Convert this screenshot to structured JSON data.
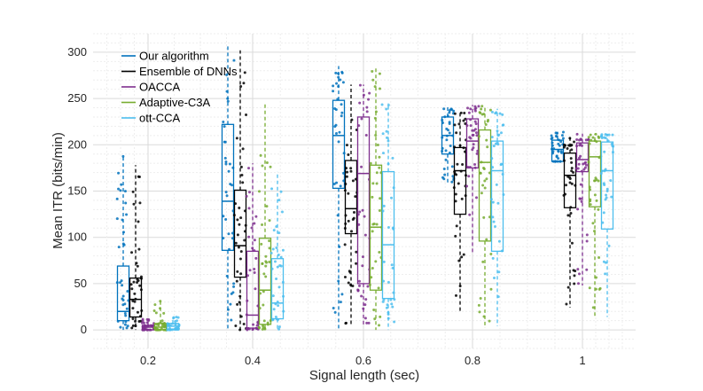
{
  "chart_data": {
    "type": "box",
    "title": "",
    "xlabel": "Signal length (sec)",
    "ylabel": "Mean ITR (bits/min)",
    "categories": [
      "0.2",
      "0.4",
      "0.6",
      "0.8",
      "1"
    ],
    "ylim": [
      -20,
      320
    ],
    "yticks": [
      0,
      50,
      100,
      150,
      200,
      250,
      300
    ],
    "grid": true,
    "legend_position": "top-left",
    "series": [
      {
        "name": "Our algorithm",
        "color": "#0072BD",
        "boxes": [
          {
            "min": 0,
            "q1": 10,
            "median": 20,
            "q3": 69,
            "max": 188
          },
          {
            "min": 0,
            "q1": 86,
            "median": 139,
            "q3": 222,
            "max": 309
          },
          {
            "min": 0,
            "q1": 153,
            "median": 210,
            "q3": 248,
            "max": 285
          },
          {
            "min": 159,
            "q1": 190,
            "median": 210,
            "q3": 230,
            "max": 241
          },
          {
            "min": 182,
            "q1": 182,
            "median": 195,
            "q3": 205,
            "max": 214
          }
        ]
      },
      {
        "name": "Ensemble of DNNs",
        "color": "#000000",
        "boxes": [
          {
            "min": 0,
            "q1": 14,
            "median": 33,
            "q3": 56,
            "max": 178
          },
          {
            "min": 0,
            "q1": 57,
            "median": 91,
            "q3": 151,
            "max": 302
          },
          {
            "min": 6,
            "q1": 104,
            "median": 131,
            "q3": 183,
            "max": 265
          },
          {
            "min": 18,
            "q1": 125,
            "median": 172,
            "q3": 197,
            "max": 236
          },
          {
            "min": 24,
            "q1": 132,
            "median": 167,
            "q3": 191,
            "max": 210
          }
        ]
      },
      {
        "name": "OACCA",
        "color": "#7E2F8E",
        "boxes": [
          {
            "min": 0,
            "q1": 0,
            "median": 3,
            "q3": 5,
            "max": 12
          },
          {
            "min": 0,
            "q1": 2,
            "median": 16,
            "q3": 85,
            "max": 180
          },
          {
            "min": 6,
            "q1": 50,
            "median": 169,
            "q3": 230,
            "max": 265
          },
          {
            "min": 84,
            "q1": 175,
            "median": 204,
            "q3": 228,
            "max": 243
          },
          {
            "min": 48,
            "q1": 171,
            "median": 184,
            "q3": 202,
            "max": 212
          }
        ]
      },
      {
        "name": "Adaptive-C3A",
        "color": "#77AC30",
        "boxes": [
          {
            "min": 0,
            "q1": 0,
            "median": 3,
            "q3": 7,
            "max": 33
          },
          {
            "min": 0,
            "q1": 6,
            "median": 43,
            "q3": 99,
            "max": 244
          },
          {
            "min": 0,
            "q1": 43,
            "median": 111,
            "q3": 178,
            "max": 285
          },
          {
            "min": 2,
            "q1": 96,
            "median": 181,
            "q3": 216,
            "max": 242
          },
          {
            "min": 14,
            "q1": 133,
            "median": 187,
            "q3": 204,
            "max": 212
          }
        ]
      },
      {
        "name": "ott-CCA",
        "color": "#4DBEEE",
        "boxes": [
          {
            "min": 0,
            "q1": 1,
            "median": 4,
            "q3": 7,
            "max": 14
          },
          {
            "min": 0,
            "q1": 12,
            "median": 29,
            "q3": 77,
            "max": 171
          },
          {
            "min": 0,
            "q1": 34,
            "median": 92,
            "q3": 171,
            "max": 245
          },
          {
            "min": 4,
            "q1": 85,
            "median": 172,
            "q3": 204,
            "max": 239
          },
          {
            "min": 14,
            "q1": 109,
            "median": 172,
            "q3": 203,
            "max": 212
          }
        ]
      }
    ]
  }
}
